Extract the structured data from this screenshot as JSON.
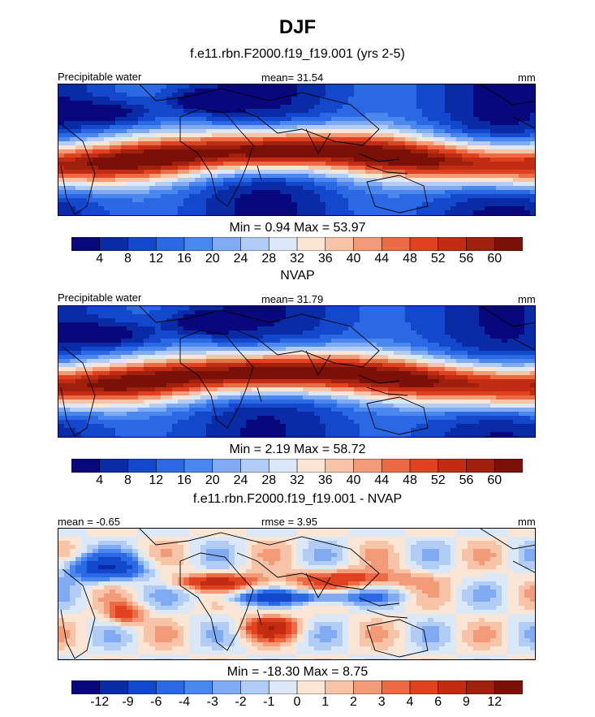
{
  "figure": {
    "title": "DJF",
    "subtitle": "f.e11.rbn.F2000.f19_f19.001 (yrs 2-5)"
  },
  "chart_data": [
    {
      "type": "heatmap",
      "panel": "model",
      "left_label": "Precipitable water",
      "stat_label": "mean=  31.54",
      "units": "mm",
      "minmax": "Min =   0.94 Max =  53.97",
      "min": 0.94,
      "max": 53.97,
      "mean": 31.54,
      "colorbar_levels": [
        "4",
        "8",
        "12",
        "16",
        "20",
        "24",
        "28",
        "32",
        "36",
        "40",
        "44",
        "48",
        "52",
        "56",
        "60"
      ],
      "colors": [
        "#08087c",
        "#0a2ba6",
        "#1448cc",
        "#2a68e4",
        "#4a88ef",
        "#80aaf2",
        "#b1cdf6",
        "#dbe8f8",
        "#fbe6d6",
        "#f8c4a8",
        "#f39a78",
        "#ec6a44",
        "#e04220",
        "#c22c12",
        "#a0200e",
        "#7a1008"
      ]
    },
    {
      "type": "heatmap",
      "panel": "obs",
      "center_title": "NVAP",
      "left_label": "Precipitable water",
      "stat_label": "mean=  31.79",
      "units": "mm",
      "minmax": "Min =   2.19 Max =  58.72",
      "min": 2.19,
      "max": 58.72,
      "mean": 31.79,
      "colorbar_levels": [
        "4",
        "8",
        "12",
        "16",
        "20",
        "24",
        "28",
        "32",
        "36",
        "40",
        "44",
        "48",
        "52",
        "56",
        "60"
      ],
      "colors": [
        "#08087c",
        "#0a2ba6",
        "#1448cc",
        "#2a68e4",
        "#4a88ef",
        "#80aaf2",
        "#b1cdf6",
        "#dbe8f8",
        "#fbe6d6",
        "#f8c4a8",
        "#f39a78",
        "#ec6a44",
        "#e04220",
        "#c22c12",
        "#a0200e",
        "#7a1008"
      ]
    },
    {
      "type": "heatmap",
      "panel": "diff",
      "center_title": "f.e11.rbn.F2000.f19_f19.001 - NVAP",
      "left_label": "mean =  -0.65",
      "stat_label": "rmse =   3.95",
      "units": "mm",
      "minmax": "Min = -18.30 Max =   8.75",
      "min": -18.3,
      "max": 8.75,
      "mean": -0.65,
      "rmse": 3.95,
      "colorbar_levels": [
        "-12",
        "-9",
        "-6",
        "-4",
        "-3",
        "-2",
        "-1",
        "0",
        "1",
        "2",
        "3",
        "4",
        "6",
        "9",
        "12"
      ],
      "colors": [
        "#08087c",
        "#0a2ba6",
        "#1448cc",
        "#2a68e4",
        "#4a88ef",
        "#80aaf2",
        "#b1cdf6",
        "#dbe8f8",
        "#fbe6d6",
        "#f8c4a8",
        "#f39a78",
        "#ec6a44",
        "#e04220",
        "#c22c12",
        "#a0200e",
        "#7a1008"
      ]
    }
  ]
}
